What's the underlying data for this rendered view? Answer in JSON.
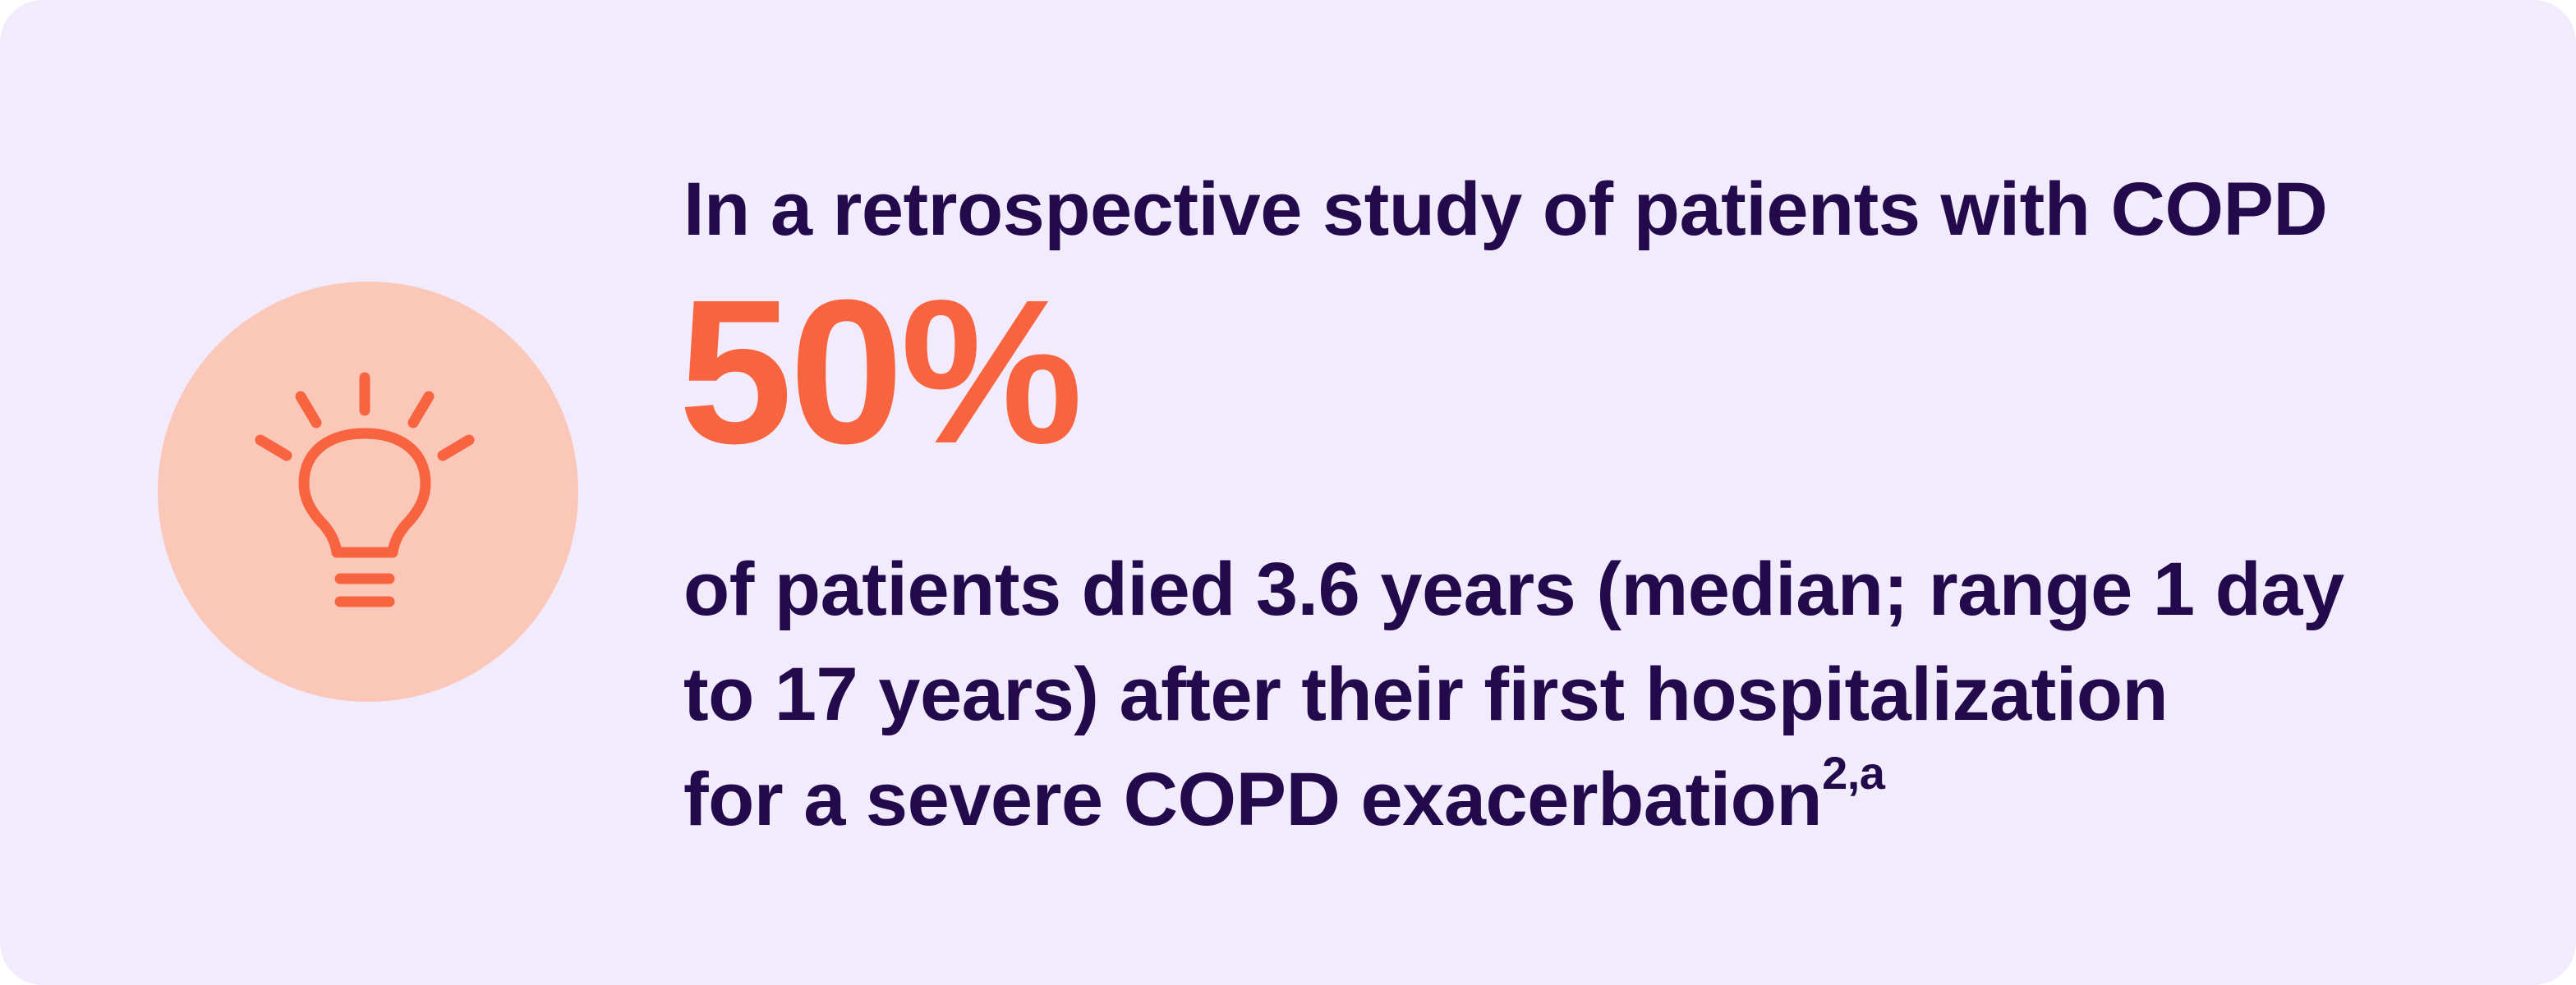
{
  "colors": {
    "background": "#f2ebfc",
    "text": "#220a4c",
    "accent": "#f7643f",
    "icon_circle": "#fac7b9"
  },
  "icon": {
    "name": "lightbulb-icon"
  },
  "intro": "In a retrospective study of patients with COPD",
  "stat": "50%",
  "description": {
    "line1": "of patients died 3.6 years (median; range 1 day",
    "line2": "to 17 years) after their first hospitalization",
    "line3": "for a severe COPD exacerbation",
    "superscript": "2,a"
  }
}
